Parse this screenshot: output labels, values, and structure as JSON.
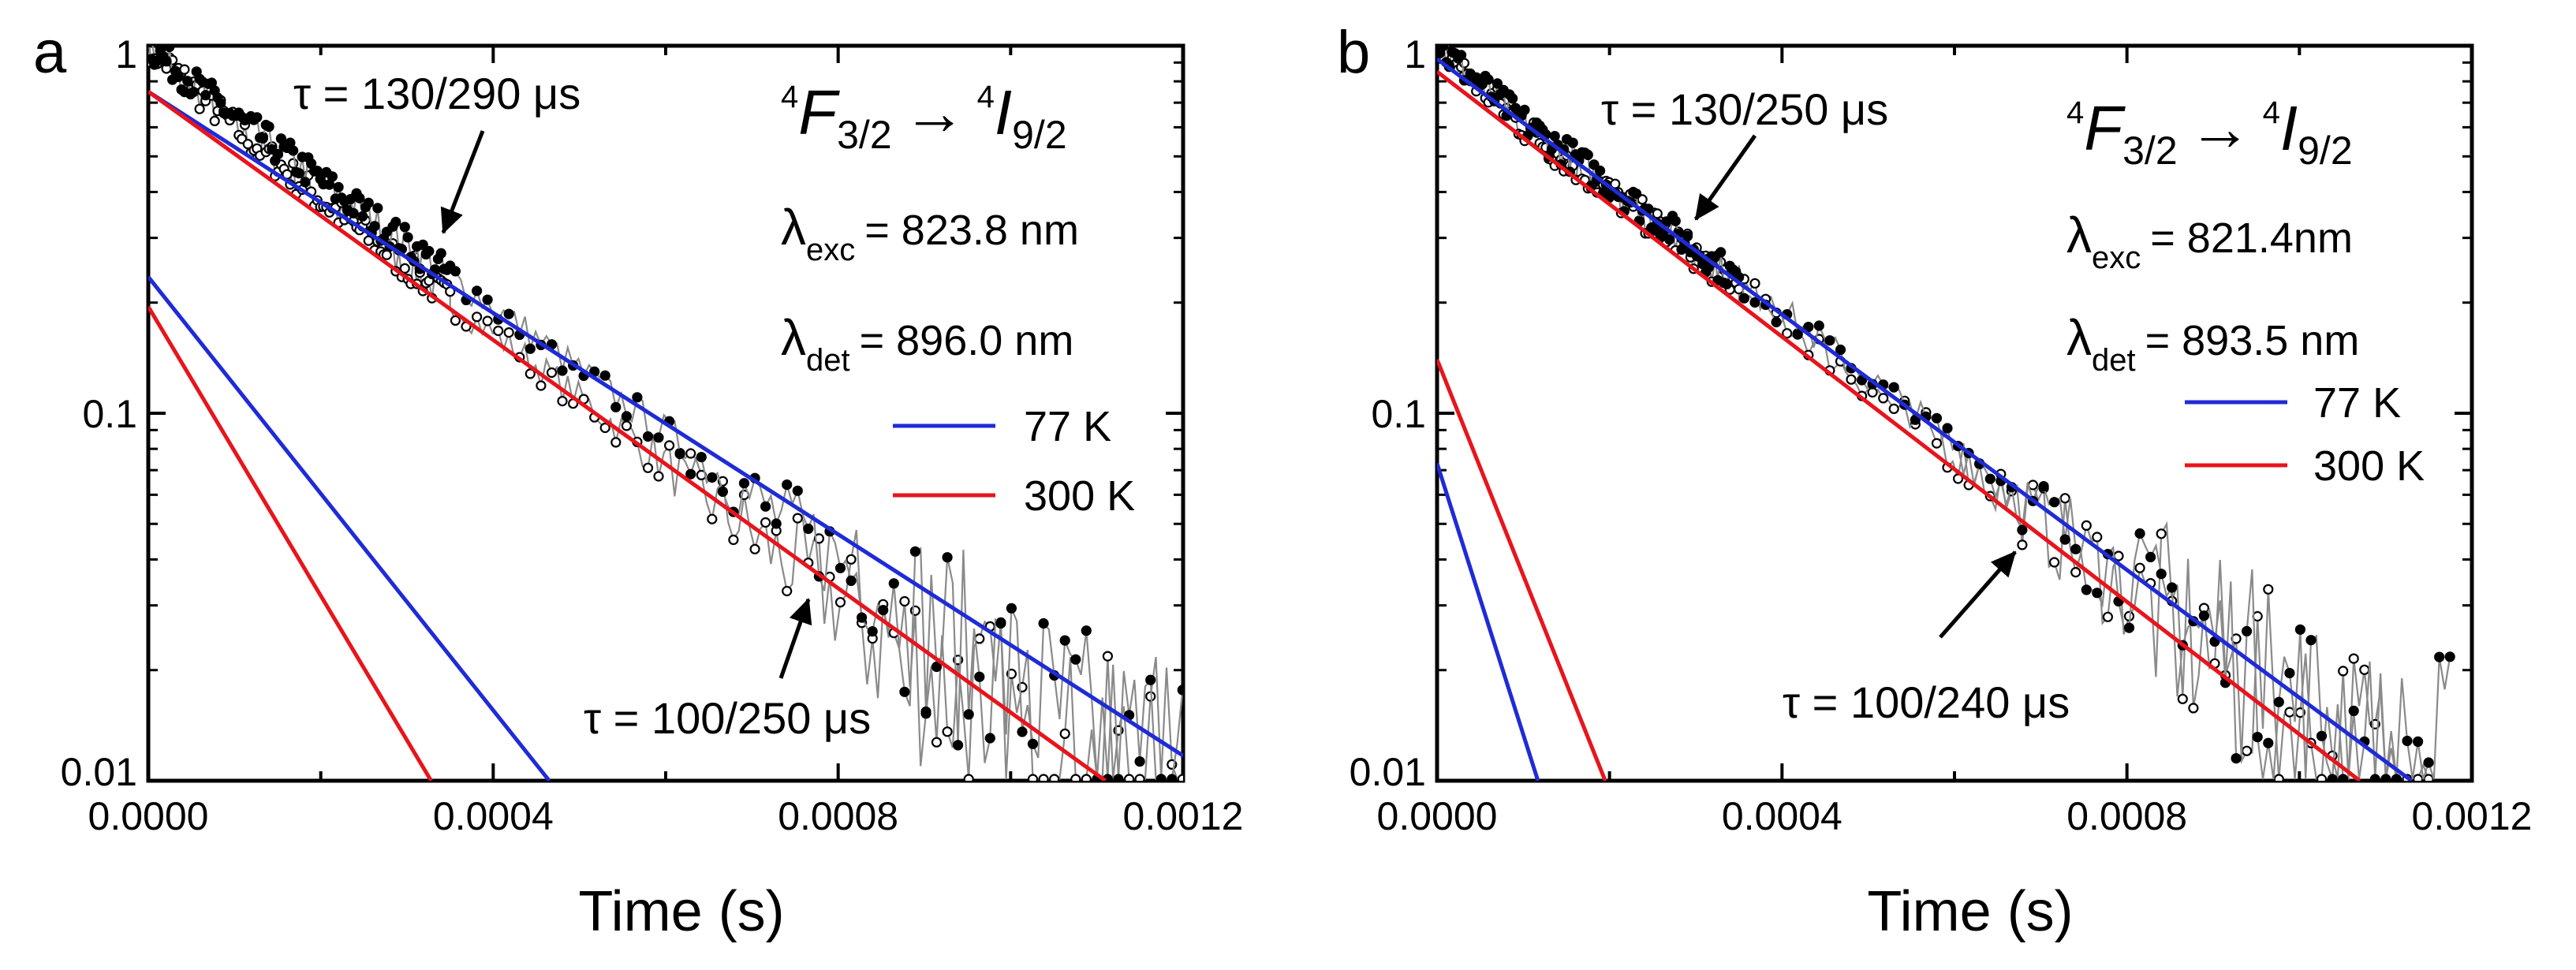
{
  "chart_data": [
    {
      "panel": "a",
      "type": "line",
      "xlabel": "Time (s)",
      "yscale": "log",
      "xlim": [
        0,
        0.0012
      ],
      "ylim": [
        0.01,
        1
      ],
      "x_ticks": [
        "0.0000",
        "0.0004",
        "0.0008",
        "0.0012"
      ],
      "y_ticks": [
        "0.01",
        "0.1",
        "1"
      ],
      "transition": {
        "upper_sup": "4",
        "upper_letter": "F",
        "upper_sub": "3/2",
        "arrow": "→",
        "lower_sup": "4",
        "lower_letter": "I",
        "lower_sub": "9/2"
      },
      "excitation": {
        "symbol": "λ",
        "sub": "exc",
        "value": "= 823.8 nm"
      },
      "detection": {
        "symbol": "λ",
        "sub": "det",
        "value": "= 896.0 nm"
      },
      "annotations": [
        {
          "text": "τ = 130/290 μs"
        },
        {
          "text": "τ = 100/250 μs"
        }
      ],
      "legend": [
        {
          "label": "77 K",
          "color": "#1f2bd6"
        },
        {
          "label": "300 K",
          "color": "#e8141c"
        }
      ],
      "fits": [
        {
          "series": "77 K long",
          "color": "#1f2bd6",
          "x": [
            0,
            0.0012
          ],
          "y": [
            0.75,
            0.0117
          ]
        },
        {
          "series": "77 K short",
          "color": "#1f2bd6",
          "x": [
            0,
            0.000465
          ],
          "y": [
            0.235,
            0.01
          ]
        },
        {
          "series": "300 K long",
          "color": "#e8141c",
          "x": [
            0,
            0.00111
          ],
          "y": [
            0.75,
            0.01
          ]
        },
        {
          "series": "300 K short",
          "color": "#e8141c",
          "x": [
            0,
            0.000328
          ],
          "y": [
            0.195,
            0.01
          ]
        }
      ],
      "data_77K": {
        "x": [
          0,
          0.0001,
          0.0002,
          0.0003,
          0.0004,
          0.0005,
          0.0006,
          0.0007,
          0.0008,
          0.0009,
          0.001,
          0.0011,
          0.0012
        ],
        "y": [
          1.0,
          0.64,
          0.43,
          0.29,
          0.195,
          0.131,
          0.088,
          0.059,
          0.04,
          0.027,
          0.0183,
          0.0125,
          0.0112
        ]
      },
      "data_300K": {
        "x": [
          0,
          0.0001,
          0.0002,
          0.0003,
          0.0004,
          0.0005,
          0.0006,
          0.0007,
          0.0008,
          0.0009,
          0.001,
          0.0011,
          0.0012
        ],
        "y": [
          1.0,
          0.6,
          0.38,
          0.25,
          0.165,
          0.11,
          0.073,
          0.047,
          0.031,
          0.02,
          0.0135,
          0.0105,
          0.011
        ]
      }
    },
    {
      "panel": "b",
      "type": "line",
      "xlabel": "Time (s)",
      "yscale": "log",
      "xlim": [
        0,
        0.0012
      ],
      "ylim": [
        0.01,
        1
      ],
      "x_ticks": [
        "0.0000",
        "0.0004",
        "0.0008",
        "0.0012"
      ],
      "y_ticks": [
        "0.01",
        "0.1",
        "1"
      ],
      "transition": {
        "upper_sup": "4",
        "upper_letter": "F",
        "upper_sub": "3/2",
        "arrow": "→",
        "lower_sup": "4",
        "lower_letter": "I",
        "lower_sub": "9/2"
      },
      "excitation": {
        "symbol": "λ",
        "sub": "exc",
        "value": "= 821.4nm"
      },
      "detection": {
        "symbol": "λ",
        "sub": "det",
        "value": "= 893.5 nm"
      },
      "annotations": [
        {
          "text": "τ = 130/250 μs"
        },
        {
          "text": "τ = 100/240 μs"
        }
      ],
      "legend": [
        {
          "label": "77 K",
          "color": "#1f2bd6"
        },
        {
          "label": "300 K",
          "color": "#e8141c"
        }
      ],
      "fits": [
        {
          "series": "77 K long",
          "color": "#1f2bd6",
          "x": [
            0,
            0.00113
          ],
          "y": [
            0.92,
            0.01
          ]
        },
        {
          "series": "77 K short",
          "color": "#1f2bd6",
          "x": [
            0,
            0.000117
          ],
          "y": [
            0.073,
            0.01
          ]
        },
        {
          "series": "300 K long",
          "color": "#e8141c",
          "x": [
            0,
            0.00107
          ],
          "y": [
            0.85,
            0.01
          ]
        },
        {
          "series": "300 K short",
          "color": "#e8141c",
          "x": [
            0,
            0.000195
          ],
          "y": [
            0.14,
            0.01
          ]
        }
      ],
      "data_77K": {
        "x": [
          0,
          0.0001,
          0.0002,
          0.0003,
          0.0004,
          0.0005,
          0.0006,
          0.0007,
          0.0008,
          0.0009,
          0.001,
          0.0011,
          0.00118
        ],
        "y": [
          1.0,
          0.62,
          0.42,
          0.28,
          0.19,
          0.125,
          0.082,
          0.054,
          0.036,
          0.024,
          0.016,
          0.0105,
          0.0112
        ]
      },
      "data_300K": {
        "x": [
          0,
          0.0001,
          0.0002,
          0.0003,
          0.0004,
          0.0005,
          0.0006,
          0.0007,
          0.0008,
          0.0009,
          0.001,
          0.0011,
          0.00115
        ],
        "y": [
          1.0,
          0.6,
          0.4,
          0.27,
          0.18,
          0.118,
          0.078,
          0.05,
          0.033,
          0.022,
          0.0145,
          0.0105,
          0.0108
        ]
      }
    }
  ]
}
